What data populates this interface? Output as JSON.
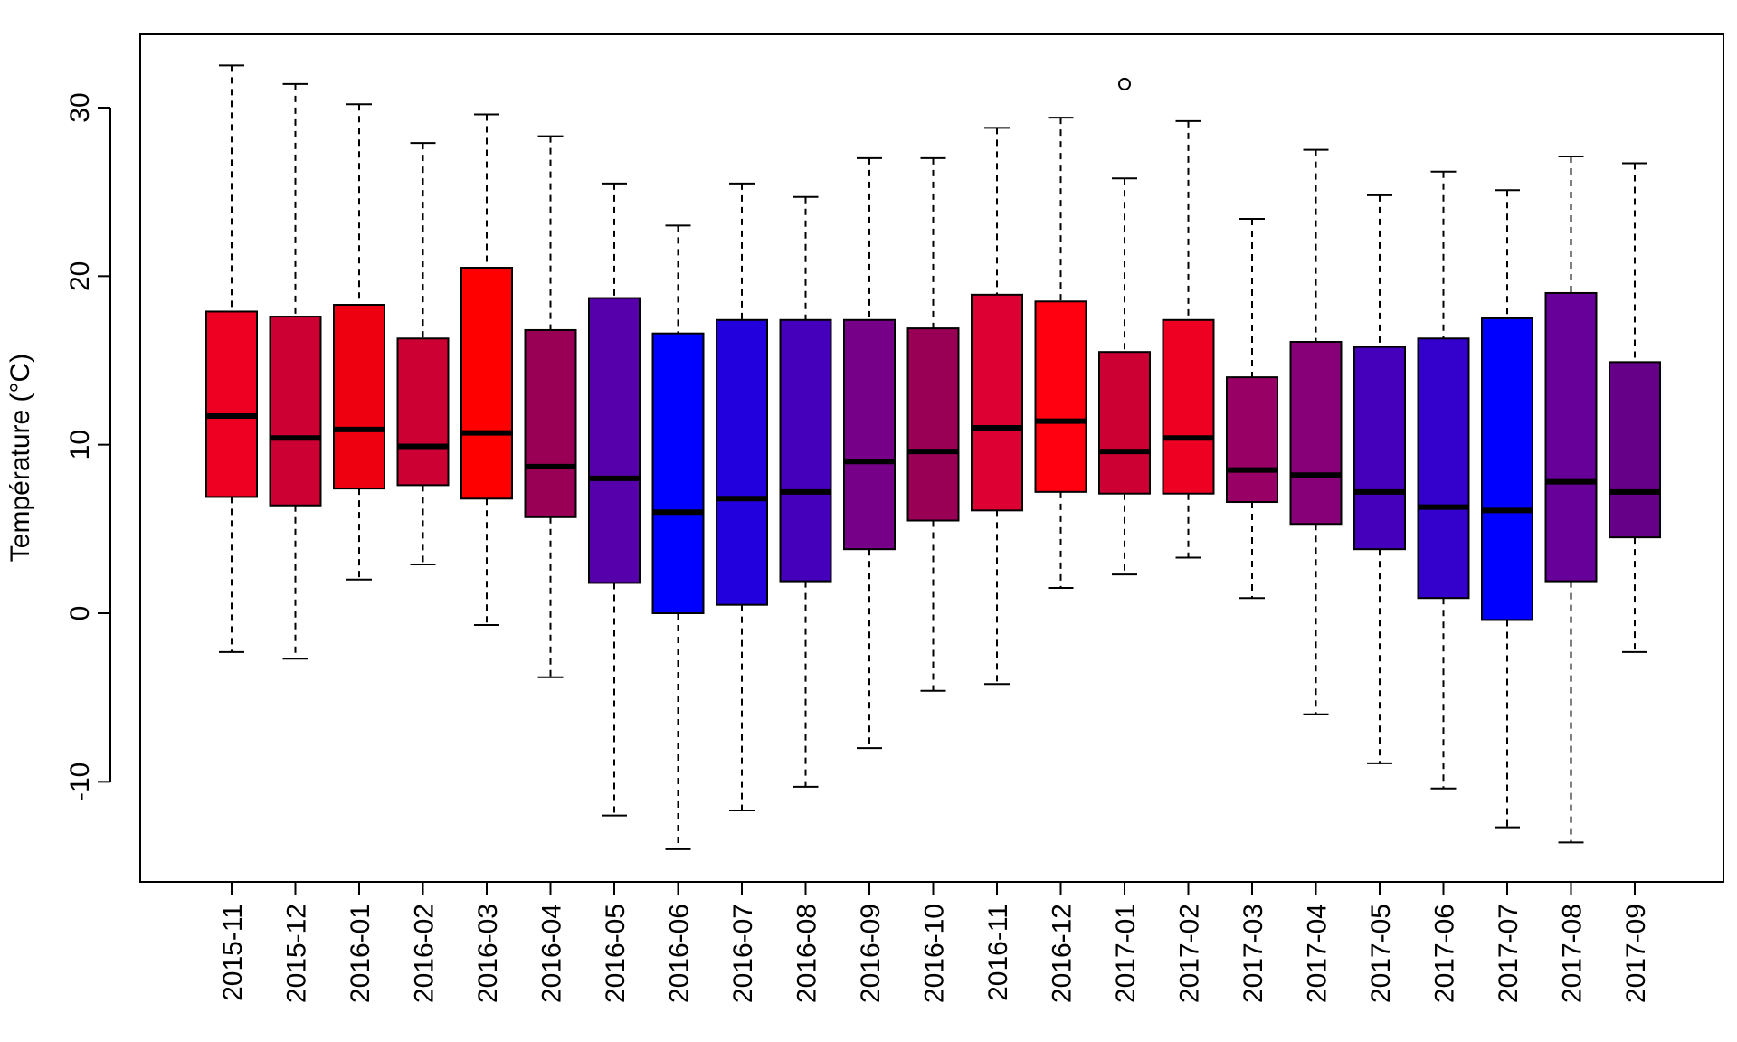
{
  "chart_data": {
    "type": "boxplot",
    "title": "",
    "xlabel": "",
    "ylabel": "Température (°C)",
    "ylim": [
      -16,
      34
    ],
    "y_ticks": [
      -10,
      0,
      10,
      20,
      30
    ],
    "y_tick_labels": [
      "-10",
      "0",
      "10",
      "20",
      "30"
    ],
    "grid": false,
    "categories": [
      "2015-11",
      "2015-12",
      "2016-01",
      "2016-02",
      "2016-03",
      "2016-04",
      "2016-05",
      "2016-06",
      "2016-07",
      "2016-08",
      "2016-09",
      "2016-10",
      "2016-11",
      "2016-12",
      "2017-01",
      "2017-02",
      "2017-03",
      "2017-04",
      "2017-05",
      "2017-06",
      "2017-07",
      "2017-08",
      "2017-09"
    ],
    "boxes": [
      {
        "label": "2015-11",
        "whisker_low": -2.3,
        "q1": 6.9,
        "median": 11.7,
        "q3": 17.9,
        "whisker_high": 32.5,
        "outliers": [],
        "color": "#EE0022"
      },
      {
        "label": "2015-12",
        "whisker_low": -2.7,
        "q1": 6.4,
        "median": 10.4,
        "q3": 17.6,
        "whisker_high": 31.4,
        "outliers": [],
        "color": "#CC0033"
      },
      {
        "label": "2016-01",
        "whisker_low": 2.0,
        "q1": 7.4,
        "median": 10.9,
        "q3": 18.3,
        "whisker_high": 30.2,
        "outliers": [],
        "color": "#EE0011"
      },
      {
        "label": "2016-02",
        "whisker_low": 2.9,
        "q1": 7.6,
        "median": 9.9,
        "q3": 16.3,
        "whisker_high": 27.9,
        "outliers": [],
        "color": "#CC0033"
      },
      {
        "label": "2016-03",
        "whisker_low": -0.7,
        "q1": 6.8,
        "median": 10.7,
        "q3": 20.5,
        "whisker_high": 29.6,
        "outliers": [],
        "color": "#FF0000"
      },
      {
        "label": "2016-04",
        "whisker_low": -3.8,
        "q1": 5.7,
        "median": 8.7,
        "q3": 16.8,
        "whisker_high": 28.3,
        "outliers": [],
        "color": "#990055"
      },
      {
        "label": "2016-05",
        "whisker_low": -12.0,
        "q1": 1.8,
        "median": 8.0,
        "q3": 18.7,
        "whisker_high": 25.5,
        "outliers": [],
        "color": "#5500AA"
      },
      {
        "label": "2016-06",
        "whisker_low": -14.0,
        "q1": 0.0,
        "median": 6.0,
        "q3": 16.6,
        "whisker_high": 23.0,
        "outliers": [],
        "color": "#0000FF"
      },
      {
        "label": "2016-07",
        "whisker_low": -11.7,
        "q1": 0.5,
        "median": 6.8,
        "q3": 17.4,
        "whisker_high": 25.5,
        "outliers": [],
        "color": "#2200DD"
      },
      {
        "label": "2016-08",
        "whisker_low": -10.3,
        "q1": 1.9,
        "median": 7.2,
        "q3": 17.4,
        "whisker_high": 24.7,
        "outliers": [],
        "color": "#4400BB"
      },
      {
        "label": "2016-09",
        "whisker_low": -8.0,
        "q1": 3.8,
        "median": 9.0,
        "q3": 17.4,
        "whisker_high": 27.0,
        "outliers": [],
        "color": "#770088"
      },
      {
        "label": "2016-10",
        "whisker_low": -4.6,
        "q1": 5.5,
        "median": 9.6,
        "q3": 16.9,
        "whisker_high": 27.0,
        "outliers": [],
        "color": "#990055"
      },
      {
        "label": "2016-11",
        "whisker_low": -4.2,
        "q1": 6.1,
        "median": 11.0,
        "q3": 18.9,
        "whisker_high": 28.8,
        "outliers": [],
        "color": "#DD0033"
      },
      {
        "label": "2016-12",
        "whisker_low": 1.5,
        "q1": 7.2,
        "median": 11.4,
        "q3": 18.5,
        "whisker_high": 29.4,
        "outliers": [],
        "color": "#FF0011"
      },
      {
        "label": "2017-01",
        "whisker_low": 2.3,
        "q1": 7.1,
        "median": 9.6,
        "q3": 15.5,
        "whisker_high": 25.8,
        "outliers": [
          31.4
        ],
        "color": "#CC0033"
      },
      {
        "label": "2017-02",
        "whisker_low": 3.3,
        "q1": 7.1,
        "median": 10.4,
        "q3": 17.4,
        "whisker_high": 29.2,
        "outliers": [],
        "color": "#EE0022"
      },
      {
        "label": "2017-03",
        "whisker_low": 0.9,
        "q1": 6.6,
        "median": 8.5,
        "q3": 14.0,
        "whisker_high": 23.4,
        "outliers": [],
        "color": "#990066"
      },
      {
        "label": "2017-04",
        "whisker_low": -6.0,
        "q1": 5.3,
        "median": 8.2,
        "q3": 16.1,
        "whisker_high": 27.5,
        "outliers": [],
        "color": "#880077"
      },
      {
        "label": "2017-05",
        "whisker_low": -8.9,
        "q1": 3.8,
        "median": 7.2,
        "q3": 15.8,
        "whisker_high": 24.8,
        "outliers": [],
        "color": "#4400BB"
      },
      {
        "label": "2017-06",
        "whisker_low": -10.4,
        "q1": 0.9,
        "median": 6.3,
        "q3": 16.3,
        "whisker_high": 26.2,
        "outliers": [],
        "color": "#3300CC"
      },
      {
        "label": "2017-07",
        "whisker_low": -12.7,
        "q1": -0.4,
        "median": 6.1,
        "q3": 17.5,
        "whisker_high": 25.1,
        "outliers": [],
        "color": "#0000FF"
      },
      {
        "label": "2017-08",
        "whisker_low": -13.6,
        "q1": 1.9,
        "median": 7.8,
        "q3": 19.0,
        "whisker_high": 27.1,
        "outliers": [],
        "color": "#660099"
      },
      {
        "label": "2017-09",
        "whisker_low": -2.3,
        "q1": 4.5,
        "median": 7.2,
        "q3": 14.9,
        "whisker_high": 26.7,
        "outliers": [],
        "color": "#660088"
      }
    ]
  }
}
